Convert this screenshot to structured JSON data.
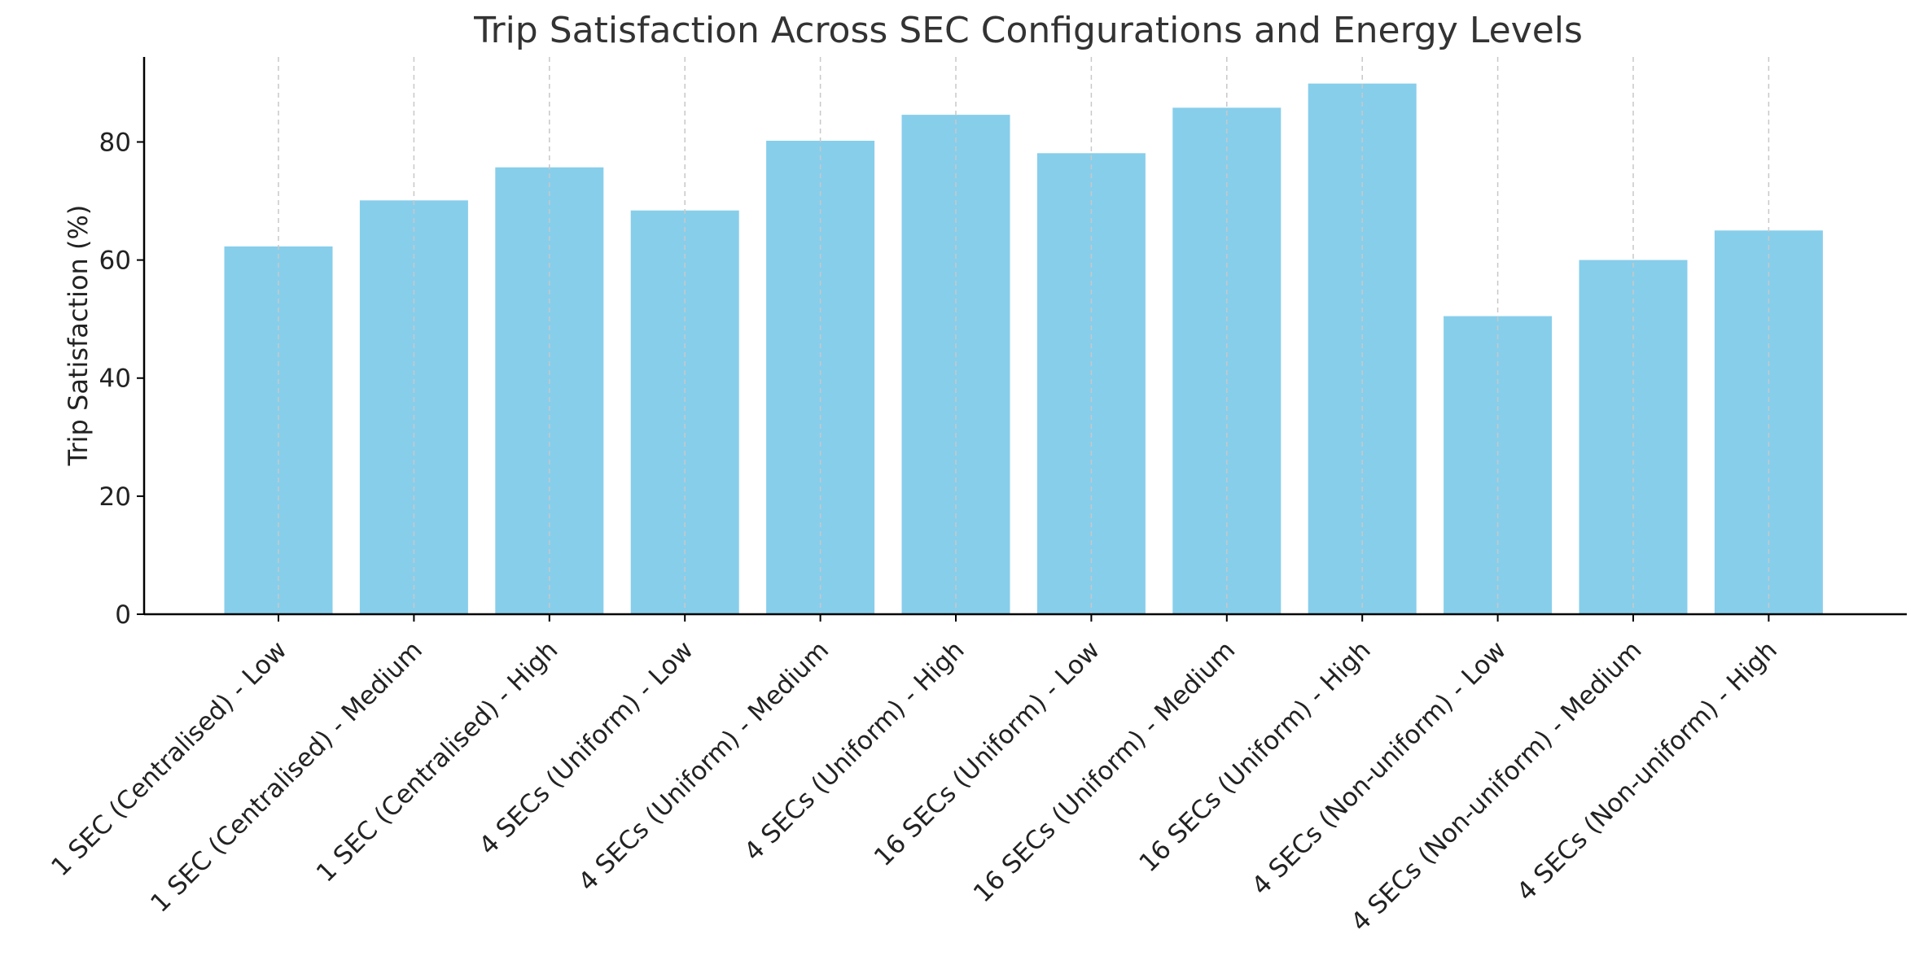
{
  "chart_data": {
    "type": "bar",
    "title": "Trip Satisfaction Across SEC Configurations and Energy Levels",
    "xlabel": "",
    "ylabel": "Trip Satisfaction (%)",
    "categories": [
      "1 SEC (Centralised) - Low",
      "1 SEC (Centralised) - Medium",
      "1 SEC (Centralised) - High",
      "4 SECs (Uniform) - Low",
      "4 SECs (Uniform) - Medium",
      "4 SECs (Uniform) - High",
      "16 SECs (Uniform) - Low",
      "16 SECs (Uniform) - Medium",
      "16 SECs (Uniform) - High",
      "4 SECs (Non-uniform) - Low",
      "4 SECs (Non-uniform) - Medium",
      "4 SECs (Non-uniform) - High"
    ],
    "values": [
      62.3,
      70.1,
      75.7,
      68.4,
      80.2,
      84.6,
      78.1,
      85.8,
      89.9,
      50.5,
      60.0,
      65.0
    ],
    "ylim": [
      0,
      94.4
    ],
    "yticks": [
      0,
      20,
      40,
      60,
      80
    ],
    "grid": "vertical dashed",
    "bar_color": "#87CEEB"
  }
}
